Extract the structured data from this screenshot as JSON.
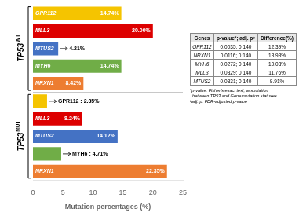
{
  "chart_data": {
    "type": "bar",
    "orientation": "horizontal",
    "xlabel": "Mutation percentages (%)",
    "xlim": [
      0,
      25
    ],
    "xticks": [
      0,
      5,
      10,
      15,
      20,
      25
    ],
    "grid": false,
    "data_labels": true,
    "groups": [
      {
        "label": "TP53",
        "superscript": "WT",
        "categories": [
          "GPR112",
          "MLL3",
          "MTUS2",
          "MYH6",
          "NRXN1"
        ],
        "values": [
          14.74,
          20.0,
          4.21,
          14.74,
          8.42
        ],
        "value_labels": [
          "14.74%",
          "20.00%",
          "4.21%",
          "14.74%",
          "8.42%"
        ],
        "colors": [
          "#f5c400",
          "#dd0000",
          "#4472c4",
          "#70ad47",
          "#ed7d31"
        ]
      },
      {
        "label": "TP53",
        "superscript": "MUT",
        "categories": [
          null,
          "MLL3",
          "MTUS2",
          null,
          "NRXN1"
        ],
        "values": [
          2.35,
          8.24,
          14.12,
          4.71,
          22.35
        ],
        "value_labels": [
          "GPR112 : 2.35%",
          "8.24%",
          "14.12%",
          "MYH6 : 4.71%",
          "22.35%"
        ],
        "colors": [
          "#f5c400",
          "#dd0000",
          "#4472c4",
          "#70ad47",
          "#ed7d31"
        ]
      }
    ],
    "table": {
      "columns": [
        "Genes",
        "p-value*; adj. pᵇ",
        "Difference(%)"
      ],
      "rows": [
        [
          "GPR112",
          "0.0035; 0.140",
          "12.39%"
        ],
        [
          "NRXN1",
          "0.0116; 0.140",
          "13.93%"
        ],
        [
          "MYH6",
          "0.0272; 0.140",
          "10.03%"
        ],
        [
          "MLL3",
          "0.0329; 0.140",
          "11.76%"
        ],
        [
          "MTUS2",
          "0.0331; 0.140",
          "9.91%"
        ]
      ]
    },
    "footnotes": [
      "*p-value: Fisher's exact test, association",
      "  between TP53 and Gene mutation statuses",
      "¹adj. p: FDR-adjusted p-value"
    ]
  }
}
